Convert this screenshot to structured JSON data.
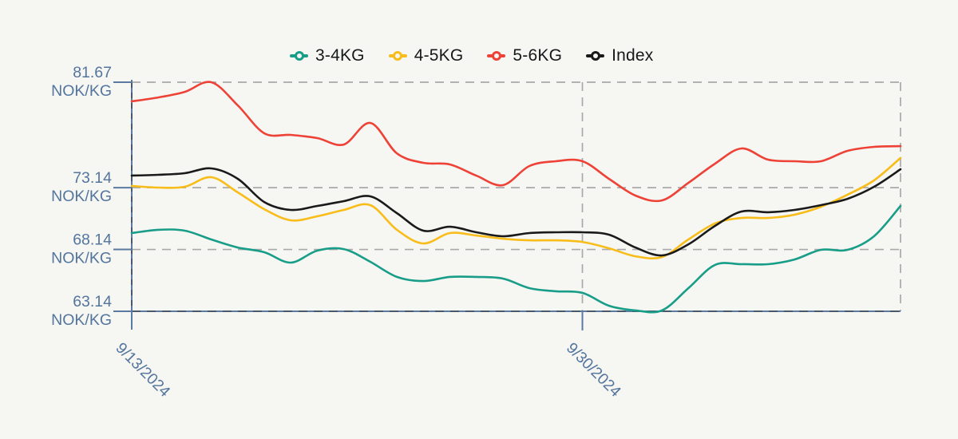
{
  "legend": [
    {
      "label": "3-4KG",
      "color": "#189e88"
    },
    {
      "label": "4-5KG",
      "color": "#f8bd19"
    },
    {
      "label": "5-6KG",
      "color": "#ee4237"
    },
    {
      "label": "Index",
      "color": "#1a1a1a"
    }
  ],
  "y_axis": {
    "unit": "NOK/KG",
    "tick_values": [
      81.67,
      73.14,
      68.14,
      63.14
    ]
  },
  "x_axis": {
    "ticks": [
      {
        "label": "9/13/2024",
        "index": 0
      },
      {
        "label": "9/30/2024",
        "index": 17
      }
    ]
  },
  "chart_data": {
    "type": "line",
    "title": "",
    "xlabel": "",
    "ylabel": "NOK/KG",
    "ylim": [
      63.14,
      81.67
    ],
    "x": [
      0,
      1,
      2,
      3,
      4,
      5,
      6,
      7,
      8,
      9,
      10,
      11,
      12,
      13,
      14,
      15,
      16,
      17,
      18,
      19,
      20,
      21,
      22,
      23,
      24,
      25,
      26,
      27,
      28,
      29
    ],
    "x_tick_labels": [
      "9/13/2024",
      "9/30/2024"
    ],
    "x_tick_indices": [
      0,
      17
    ],
    "legend_position": "top",
    "grid": "dashed",
    "series": [
      {
        "name": "3-4KG",
        "color": "#189e88",
        "values": [
          69.47,
          69.73,
          69.66,
          68.95,
          68.3,
          67.92,
          67.08,
          68.05,
          68.17,
          67.14,
          65.92,
          65.59,
          65.92,
          65.92,
          65.79,
          65.01,
          64.76,
          64.63,
          63.59,
          63.21,
          63.21,
          65.01,
          66.89,
          66.95,
          66.95,
          67.33,
          68.11,
          68.11,
          69.21,
          71.66
        ]
      },
      {
        "name": "4-5KG",
        "color": "#f8bd19",
        "values": [
          73.28,
          73.15,
          73.21,
          73.99,
          72.76,
          71.4,
          70.5,
          70.82,
          71.34,
          71.73,
          69.73,
          68.63,
          69.47,
          69.27,
          69.01,
          68.88,
          68.88,
          68.75,
          68.24,
          67.59,
          67.53,
          68.95,
          70.24,
          70.69,
          70.69,
          70.95,
          71.6,
          72.57,
          73.73,
          75.54
        ]
      },
      {
        "name": "5-6KG",
        "color": "#ee4237",
        "values": [
          80.12,
          80.44,
          80.89,
          81.67,
          79.8,
          77.54,
          77.41,
          77.15,
          76.63,
          78.38,
          75.92,
          75.15,
          75.02,
          74.11,
          73.34,
          74.89,
          75.28,
          75.28,
          73.86,
          72.5,
          72.11,
          73.53,
          75.08,
          76.31,
          75.41,
          75.28,
          75.28,
          76.12,
          76.44,
          76.5
        ]
      },
      {
        "name": "Index",
        "color": "#1a1a1a",
        "values": [
          74.12,
          74.18,
          74.31,
          74.7,
          73.86,
          71.98,
          71.34,
          71.66,
          72.05,
          72.44,
          71.08,
          69.66,
          69.98,
          69.53,
          69.21,
          69.47,
          69.53,
          69.53,
          69.34,
          68.3,
          67.66,
          68.56,
          70.05,
          71.21,
          71.15,
          71.34,
          71.73,
          72.24,
          73.21,
          74.63
        ]
      }
    ]
  }
}
